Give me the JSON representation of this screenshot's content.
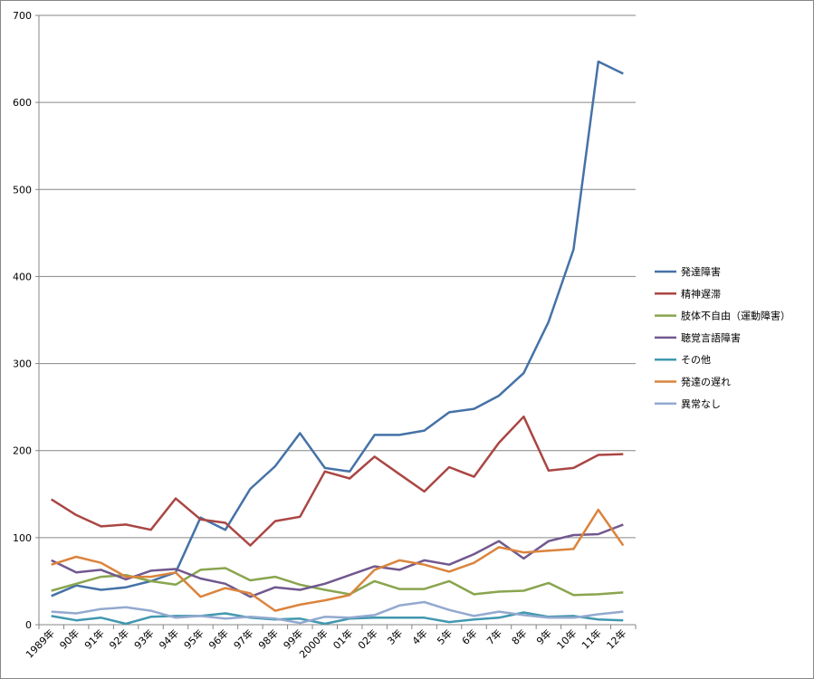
{
  "chart_data": {
    "type": "line",
    "title": "",
    "xlabel": "",
    "ylabel": "",
    "ylim": [
      0,
      700
    ],
    "yticks": [
      0,
      100,
      200,
      300,
      400,
      500,
      600,
      700
    ],
    "grid": true,
    "legend_position": "right",
    "categories": [
      "1989年",
      "90年",
      "91年",
      "92年",
      "93年",
      "94年",
      "95年",
      "96年",
      "97年",
      "98年",
      "99年",
      "2000年",
      "01年",
      "02年",
      "3年",
      "4年",
      "5年",
      "6年",
      "7年",
      "8年",
      "9年",
      "10年",
      "11年",
      "12年"
    ],
    "series": [
      {
        "name": "発達障害",
        "color": "#4572A7",
        "values": [
          33,
          45,
          40,
          43,
          50,
          60,
          123,
          109,
          156,
          182,
          220,
          180,
          176,
          218,
          218,
          223,
          244,
          248,
          263,
          289,
          348,
          431,
          647,
          633
        ]
      },
      {
        "name": "精神遅滞",
        "color": "#AA4643",
        "values": [
          144,
          126,
          113,
          115,
          109,
          145,
          121,
          117,
          91,
          119,
          124,
          176,
          168,
          193,
          173,
          153,
          181,
          170,
          209,
          239,
          177,
          180,
          195,
          196
        ]
      },
      {
        "name": "肢体不自由（運動障害）",
        "color": "#89A54E",
        "values": [
          39,
          47,
          55,
          57,
          50,
          46,
          63,
          65,
          51,
          55,
          46,
          40,
          35,
          50,
          41,
          41,
          50,
          35,
          38,
          39,
          48,
          34,
          35,
          37
        ]
      },
      {
        "name": "聴覚言語障害",
        "color": "#71588F",
        "values": [
          74,
          60,
          63,
          52,
          62,
          64,
          53,
          47,
          32,
          43,
          40,
          47,
          57,
          67,
          63,
          74,
          69,
          81,
          96,
          76,
          96,
          103,
          104,
          115
        ]
      },
      {
        "name": "その他",
        "color": "#4198AF",
        "values": [
          10,
          5,
          8,
          1,
          9,
          10,
          10,
          13,
          8,
          6,
          7,
          1,
          7,
          8,
          8,
          8,
          3,
          6,
          8,
          14,
          9,
          10,
          6,
          5
        ]
      },
      {
        "name": "発達の遅れ",
        "color": "#DB843D",
        "values": [
          69,
          78,
          71,
          55,
          55,
          60,
          32,
          42,
          36,
          16,
          23,
          28,
          34,
          63,
          74,
          69,
          61,
          71,
          89,
          83,
          85,
          87,
          132,
          91
        ]
      },
      {
        "name": "異常なし",
        "color": "#93A9CF",
        "values": [
          15,
          13,
          18,
          20,
          16,
          8,
          10,
          7,
          9,
          7,
          2,
          9,
          8,
          11,
          22,
          26,
          17,
          10,
          15,
          11,
          8,
          8,
          12,
          15
        ]
      }
    ]
  }
}
